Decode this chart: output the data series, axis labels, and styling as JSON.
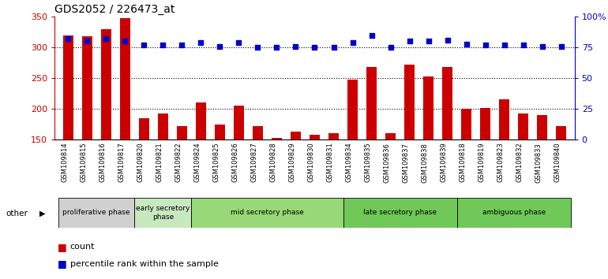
{
  "title": "GDS2052 / 226473_at",
  "categories": [
    "GSM109814",
    "GSM109815",
    "GSM109816",
    "GSM109817",
    "GSM109820",
    "GSM109821",
    "GSM109822",
    "GSM109824",
    "GSM109825",
    "GSM109826",
    "GSM109827",
    "GSM109828",
    "GSM109829",
    "GSM109830",
    "GSM109831",
    "GSM109834",
    "GSM109835",
    "GSM109836",
    "GSM109837",
    "GSM109838",
    "GSM109839",
    "GSM109818",
    "GSM109819",
    "GSM109823",
    "GSM109832",
    "GSM109833",
    "GSM109840"
  ],
  "counts": [
    320,
    318,
    330,
    348,
    185,
    193,
    172,
    210,
    175,
    205,
    172,
    152,
    163,
    158,
    160,
    247,
    268,
    160,
    272,
    253,
    268,
    200,
    202,
    216,
    193,
    190,
    172
  ],
  "percentile": [
    82,
    80,
    82,
    80,
    77,
    77,
    77,
    79,
    76,
    79,
    75,
    75,
    76,
    75,
    75,
    79,
    85,
    75,
    80,
    80,
    81,
    78,
    77,
    77,
    77,
    76,
    76
  ],
  "bar_color": "#cc0000",
  "dot_color": "#0000cc",
  "bar_bottom": 150,
  "ylim_left": [
    150,
    350
  ],
  "ylim_right": [
    0,
    100
  ],
  "yticks_left": [
    150,
    200,
    250,
    300,
    350
  ],
  "yticks_right": [
    0,
    25,
    50,
    75,
    100
  ],
  "ytick_labels_right": [
    "0",
    "25",
    "50",
    "75",
    "100%"
  ],
  "gridlines": [
    200,
    250,
    300
  ],
  "phases": [
    {
      "label": "proliferative phase",
      "start": 0,
      "end": 4,
      "color": "#d0d0d0"
    },
    {
      "label": "early secretory\nphase",
      "start": 4,
      "end": 7,
      "color": "#c8e8c0"
    },
    {
      "label": "mid secretory phase",
      "start": 7,
      "end": 15,
      "color": "#98d878"
    },
    {
      "label": "late secretory phase",
      "start": 15,
      "end": 21,
      "color": "#70c858"
    },
    {
      "label": "ambiguous phase",
      "start": 21,
      "end": 27,
      "color": "#70c858"
    }
  ],
  "other_label": "other",
  "legend_count_label": "count",
  "legend_percentile_label": "percentile rank within the sample",
  "bar_color_left": "#cc0000",
  "dot_color_blue": "#0000cc"
}
